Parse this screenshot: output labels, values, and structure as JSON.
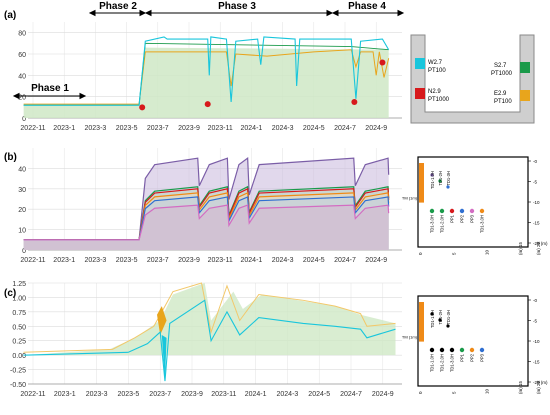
{
  "colors": {
    "cyan": "#19c6dc",
    "gold": "#e8a51c",
    "goldLight": "#f2c86a",
    "green": "#1a9a4a",
    "red": "#d7191c",
    "purple": "#7b5ea7",
    "blue": "#2f6fd1",
    "orange": "#ef8a17",
    "pink": "#d36cc2",
    "greenFill": "#cfe8c5",
    "blueFill": "#bcd4ea",
    "grid": "#dcdcdc"
  },
  "chart_data": [
    {
      "panel": "(a)",
      "type": "line",
      "title": "",
      "xlabel": "",
      "ylabel": "",
      "x_ticks": [
        "2022-11",
        "2023-1",
        "2023-3",
        "2023-5",
        "2023-7",
        "2023-9",
        "2023-11",
        "2024-1",
        "2024-3",
        "2024-5",
        "2024-7",
        "2024-9"
      ],
      "ylim": [
        0,
        90
      ],
      "y_ticks": [
        0,
        20,
        40,
        60,
        80
      ],
      "phases": [
        {
          "label": "Phase 1",
          "start": "2022-11",
          "end": "2023-3"
        },
        {
          "label": "Phase 2",
          "start": "2023-3",
          "end": "2023-6"
        },
        {
          "label": "Phase 3",
          "start": "2023-6",
          "end": "2024-6"
        },
        {
          "label": "Phase 4",
          "start": "2024-6",
          "end": "2024-10"
        }
      ],
      "series": [
        {
          "name": "W2.7 PT100",
          "color": "#19c6dc",
          "x": [
            -0.3,
            3.4,
            3.6,
            6.2,
            6.5,
            6.6,
            10.3,
            10.6,
            11.4
          ],
          "values": [
            12,
            12,
            76,
            76,
            58,
            74,
            74,
            60,
            72
          ]
        },
        {
          "name": "S2.7 PT1000",
          "color": "#1a9a4a",
          "x": [
            -0.3,
            3.4,
            3.6,
            6.6,
            11.4
          ],
          "values": [
            13,
            13,
            68,
            67,
            66
          ]
        },
        {
          "name": "E2.9 PT100",
          "color": "#e8a51c",
          "x": [
            -0.3,
            3.4,
            3.6,
            6.6,
            7.2,
            10.3,
            10.6,
            11.4
          ],
          "values": [
            13,
            13,
            64,
            58,
            62,
            64,
            60,
            58
          ]
        },
        {
          "name": "N2.9 PT1000",
          "color": "#d7191c",
          "x": [
            3.5,
            5.6,
            10.6,
            11.2
          ],
          "values": [
            10,
            12,
            15,
            52
          ]
        }
      ],
      "legend": [
        "W2.7 PT100",
        "S2.7 PT1000",
        "N2.9 PT1000",
        "E2.9 PT100"
      ]
    },
    {
      "panel": "(b)",
      "type": "area",
      "title": "",
      "xlabel": "",
      "ylabel": "",
      "x_ticks": [
        "2022-11",
        "2023-1",
        "2023-3",
        "2023-5",
        "2023-7",
        "2023-9",
        "2023-11",
        "2024-1",
        "2024-3",
        "2024-5",
        "2024-7",
        "2024-9"
      ],
      "ylim": [
        0,
        50
      ],
      "y_ticks": [
        0,
        10,
        20,
        30,
        40
      ],
      "series": [
        {
          "name": "TD1-1.0H",
          "color": "#7b5ea7",
          "values_plateau": 45
        },
        {
          "name": "TD1-2H",
          "color": "#1a9a4a",
          "values_plateau": 31
        },
        {
          "name": "TD1-3H",
          "color": "#d7191c",
          "values_plateau": 30
        },
        {
          "name": "PP1",
          "color": "#ef8a17",
          "values_plateau": 28
        },
        {
          "name": "PP2",
          "color": "#2f6fd1",
          "values_plateau": 26
        },
        {
          "name": "PP3",
          "color": "#d36cc2",
          "values_plateau": 22
        }
      ],
      "baseline": 5
    },
    {
      "panel": "(c)",
      "type": "line",
      "title": "",
      "xlabel": "",
      "ylabel": "",
      "x_ticks": [
        "2022-11",
        "2023-1",
        "2023-3",
        "2023-5",
        "2023-7",
        "2023-9",
        "2023-11",
        "2024-1",
        "2024-3",
        "2024-5",
        "2024-7",
        "2024-9"
      ],
      "ylim": [
        -0.5,
        1.25
      ],
      "y_ticks": [
        -0.5,
        -0.25,
        0,
        0.25,
        0.5,
        0.75,
        1,
        1.25
      ],
      "series": [
        {
          "name": "gold",
          "color": "#e8a51c"
        },
        {
          "name": "cyan",
          "color": "#19c6dc"
        }
      ]
    }
  ],
  "labels": {
    "panel_a": "(a)",
    "panel_b": "(b)",
    "panel_c": "(c)",
    "phase1": "Phase 1",
    "phase2": "Phase 2",
    "phase3": "Phase 3",
    "phase4": "Phase 4",
    "leg_w": "W2.7",
    "leg_w2": "PT100",
    "leg_s": "S2.7",
    "leg_s2": "PT1000",
    "leg_n": "N2.9",
    "leg_n2": "PT1000",
    "leg_e": "E2.9",
    "leg_e2": "PT100"
  },
  "diagram_b": {
    "left_label": "TM (1m)",
    "axis_ticks": [
      "-0",
      "-5",
      "-10",
      "-15",
      "-20 (m)"
    ],
    "axis_unit": "(m) 2E",
    "bottom_ticks": [
      "0",
      "5",
      "10",
      "(m) 15"
    ],
    "probes": [
      {
        "name": "TD1-1.0H",
        "color": "#7b5ea7"
      },
      {
        "name": "TD1-2H",
        "color": "#1a9a4a"
      },
      {
        "name": "TD1-3H",
        "color": "#2f6fd1"
      }
    ],
    "points": [
      {
        "name": "TD1-3.0H",
        "color": "#1a9a4a"
      },
      {
        "name": "TD1-2.0H",
        "color": "#1a9a4a"
      },
      {
        "name": "PP1",
        "color": "#d7191c"
      },
      {
        "name": "PP2",
        "color": "#2f6fd1"
      },
      {
        "name": "PP3",
        "color": "#d36cc2"
      },
      {
        "name": "TD1-3.0H",
        "color": "#ef8a17"
      }
    ]
  },
  "diagram_c": {
    "left_label": "TM (1m)",
    "axis_ticks": [
      "-0",
      "-5",
      "-10",
      "-15",
      "-20 (m)"
    ],
    "axis_unit": "(m) 2E",
    "bottom_ticks": [
      "0",
      "5",
      "10",
      "(m) 15"
    ],
    "probes": [
      {
        "name": "TD1-1.0H",
        "color": "#000000"
      },
      {
        "name": "TD1-2H",
        "color": "#000000"
      },
      {
        "name": "TD1-3H",
        "color": "#000000"
      }
    ],
    "points": [
      {
        "name": "TD1-1.0H",
        "color": "#000000"
      },
      {
        "name": "TD1-2.0H",
        "color": "#000000"
      },
      {
        "name": "TD1-3.0H",
        "color": "#000000"
      },
      {
        "name": "PP1",
        "color": "#1a9a4a"
      },
      {
        "name": "PP2",
        "color": "#ef8a17"
      },
      {
        "name": "PP3",
        "color": "#2f6fd1"
      }
    ]
  }
}
